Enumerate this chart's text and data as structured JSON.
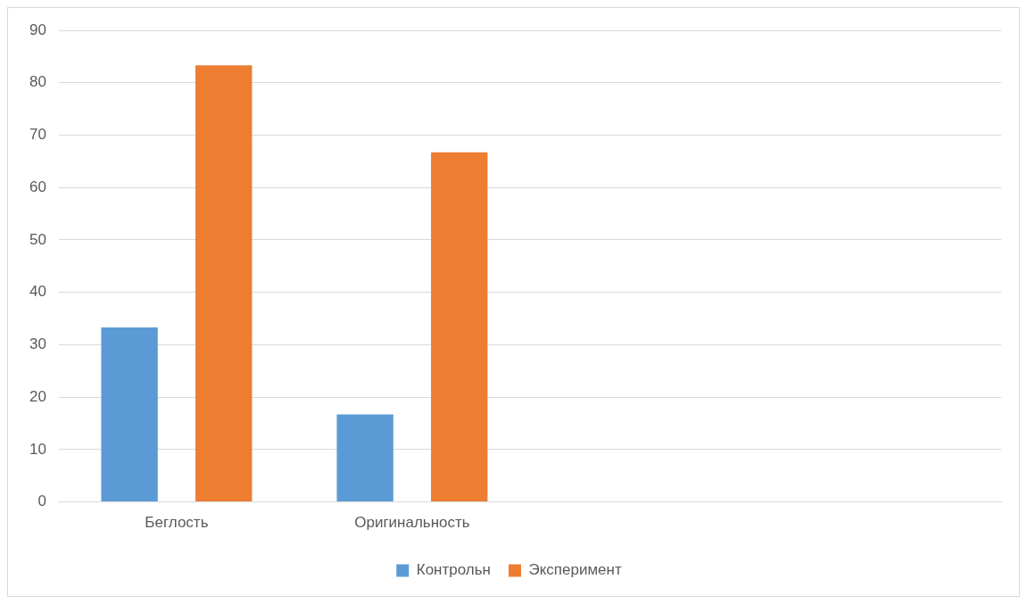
{
  "chart_data": {
    "type": "bar",
    "categories": [
      "Беглость",
      "Оригинальность",
      null,
      null
    ],
    "series": [
      {
        "name": "Контрольн",
        "color": "#5b9bd5",
        "values": [
          33.3,
          16.7,
          null,
          null
        ]
      },
      {
        "name": "Эксперимент",
        "color": "#ed7d31",
        "values": [
          83.3,
          66.7,
          null,
          null
        ]
      }
    ],
    "ylim": [
      0,
      90
    ],
    "yticks": [
      0,
      10,
      20,
      30,
      40,
      50,
      60,
      70,
      80,
      90
    ],
    "grid": "y",
    "legend": "bottom"
  }
}
